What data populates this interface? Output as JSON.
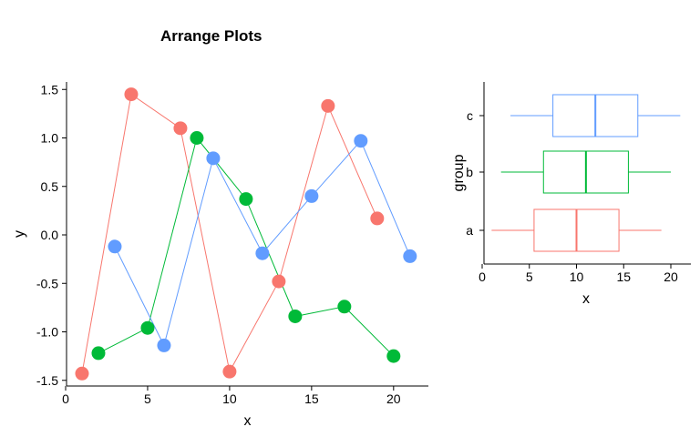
{
  "title": "Arrange Plots",
  "chart_data": [
    {
      "type": "scatter",
      "xlabel": "x",
      "ylabel": "y",
      "xlim": [
        0,
        22
      ],
      "ylim": [
        -1.55,
        1.6
      ],
      "xticks": [
        0,
        5,
        10,
        15,
        20
      ],
      "xtick_labels": [
        "0",
        "5",
        "10",
        "15",
        "20"
      ],
      "yticks": [
        -1.5,
        -1.0,
        -0.5,
        0.0,
        0.5,
        1.0,
        1.5
      ],
      "ytick_labels": [
        "-1.5",
        "-1.0",
        "-0.5",
        "0.0",
        "0.5",
        "1.0",
        "1.5"
      ],
      "grid": false,
      "legend": "none",
      "series": [
        {
          "color": "#F8766D",
          "x": [
            1,
            4,
            7,
            10,
            13,
            16,
            19
          ],
          "y": [
            -1.43,
            1.45,
            1.1,
            -1.41,
            -0.48,
            1.33,
            0.17
          ]
        },
        {
          "color": "#00BA38",
          "x": [
            2,
            5,
            8,
            11,
            14,
            17,
            20
          ],
          "y": [
            -1.22,
            -0.96,
            1.0,
            0.37,
            -0.84,
            -0.74,
            -1.25
          ]
        },
        {
          "color": "#619CFF",
          "x": [
            3,
            6,
            9,
            12,
            15,
            18,
            21
          ],
          "y": [
            -0.12,
            -1.14,
            0.79,
            -0.19,
            0.4,
            0.97,
            -0.22
          ]
        }
      ]
    },
    {
      "type": "boxplot",
      "orientation": "horizontal",
      "xlabel": "x",
      "ylabel": "group",
      "xlim": [
        0,
        22
      ],
      "xticks": [
        0,
        5,
        10,
        15,
        20
      ],
      "xtick_labels": [
        "0",
        "5",
        "10",
        "15",
        "20"
      ],
      "categories": [
        "a",
        "b",
        "c"
      ],
      "grid": false,
      "legend": "none",
      "boxes": [
        {
          "category": "a",
          "color": "#F8766D",
          "min": 1,
          "q1": 5.5,
          "median": 10,
          "q3": 14.5,
          "max": 19
        },
        {
          "category": "b",
          "color": "#00BA38",
          "min": 2,
          "q1": 6.5,
          "median": 11,
          "q3": 15.5,
          "max": 20
        },
        {
          "category": "c",
          "color": "#619CFF",
          "min": 3,
          "q1": 7.5,
          "median": 12,
          "q3": 16.5,
          "max": 21
        }
      ]
    }
  ]
}
